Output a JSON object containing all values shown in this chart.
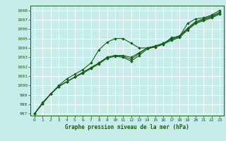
{
  "title": "Graphe pression niveau de la mer (hPa)",
  "bg_color": "#c8ece9",
  "grid_color": "#ffffff",
  "line_color": "#1a5c1a",
  "marker_color": "#1a5c1a",
  "xlim": [
    -0.5,
    23.5
  ],
  "ylim": [
    996.8,
    1008.5
  ],
  "xtick_labels": [
    "0",
    "1",
    "2",
    "3",
    "4",
    "5",
    "6",
    "7",
    "8",
    "9",
    "10",
    "11",
    "12",
    "13",
    "14",
    "15",
    "16",
    "17",
    "18",
    "19",
    "20",
    "21",
    "22",
    "23"
  ],
  "yticks": [
    997,
    998,
    999,
    1000,
    1001,
    1002,
    1003,
    1004,
    1005,
    1006,
    1007,
    1008
  ],
  "series": [
    [
      997.0,
      998.2,
      999.1,
      1000.0,
      1000.7,
      1001.2,
      1001.7,
      1002.4,
      1003.8,
      1004.6,
      1005.0,
      1005.0,
      1004.5,
      1004.0,
      1004.0,
      1004.1,
      1004.4,
      1005.1,
      1005.2,
      1006.6,
      1007.1,
      1007.2,
      1007.5,
      1008.0
    ],
    [
      997.0,
      998.1,
      999.1,
      999.9,
      1000.4,
      1000.9,
      1001.3,
      1001.8,
      1002.3,
      1002.9,
      1003.1,
      1003.0,
      1002.6,
      1003.2,
      1003.9,
      1004.1,
      1004.4,
      1004.8,
      1005.1,
      1005.9,
      1006.6,
      1006.9,
      1007.2,
      1007.6
    ],
    [
      997.0,
      998.1,
      999.1,
      999.9,
      1000.4,
      1000.9,
      1001.4,
      1001.9,
      1002.4,
      1003.0,
      1003.2,
      1003.1,
      1002.8,
      1003.4,
      1004.0,
      1004.2,
      1004.5,
      1004.9,
      1005.2,
      1006.0,
      1006.7,
      1007.0,
      1007.3,
      1007.7
    ],
    [
      997.0,
      998.1,
      999.1,
      999.9,
      1000.4,
      1000.9,
      1001.4,
      1001.9,
      1002.4,
      1003.0,
      1003.2,
      1003.2,
      1003.0,
      1003.5,
      1004.0,
      1004.2,
      1004.5,
      1005.0,
      1005.3,
      1006.1,
      1006.8,
      1007.1,
      1007.4,
      1007.8
    ]
  ]
}
